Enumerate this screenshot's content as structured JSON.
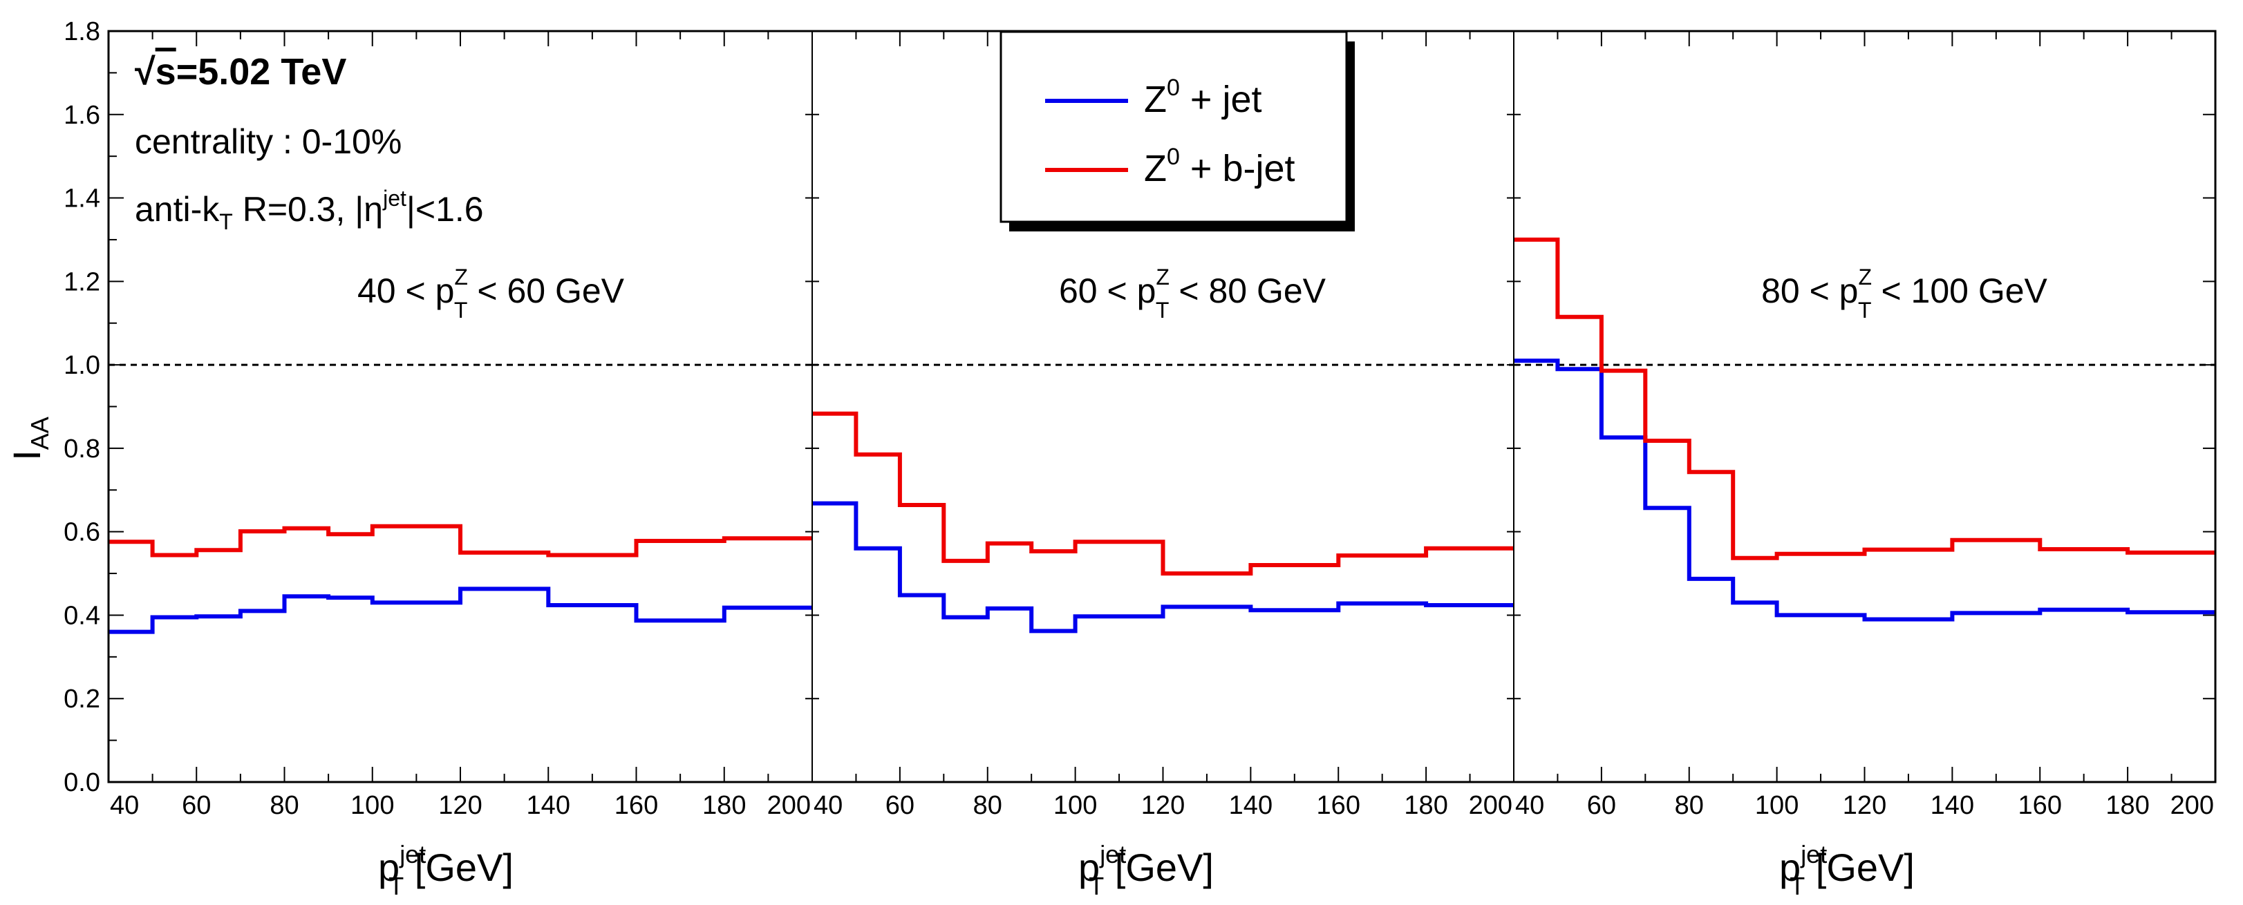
{
  "chart_data": {
    "type": "line",
    "style": "step",
    "ylabel": "I",
    "ylabel_sub": "AA",
    "ylim": [
      0,
      1.8
    ],
    "yticks": [
      "0.0",
      "0.2",
      "0.4",
      "0.6",
      "0.8",
      "1.0",
      "1.2",
      "1.4",
      "1.6",
      "1.8"
    ],
    "reference_line": 1.0,
    "annotations": {
      "energy_sqrt": "√",
      "energy_s": "s",
      "energy_value": "=5.02 TeV",
      "centrality": "centrality : 0-10%",
      "algo_a": "anti-k",
      "algo_sub": "T",
      "algo_b": " R=0.3, |η",
      "algo_sup": "jet",
      "algo_c": "|<1.6"
    },
    "legend": [
      {
        "name": "Z",
        "sup": "0",
        "rest": " + jet",
        "color": "#0000ee"
      },
      {
        "name": "Z",
        "sup": "0",
        "rest": " + b-jet",
        "color": "#ee0000"
      }
    ],
    "panels": [
      {
        "range_left": "40 < p",
        "range_sup": "Z",
        "range_sub": "T",
        "range_right": " < 60 GeV",
        "xlabel": "p",
        "xlabel_sup": "jet",
        "xlabel_sub": "T",
        "xlabel_unit": " [GeV]",
        "xlim": [
          40,
          200
        ],
        "xticks": [
          "40",
          "60",
          "80",
          "100",
          "120",
          "140",
          "160",
          "180",
          "200"
        ],
        "bin_edges": [
          40,
          50,
          60,
          70,
          80,
          90,
          100,
          120,
          140,
          160,
          180,
          200
        ],
        "series": [
          {
            "name": "Z0 + jet",
            "color": "#0000ee",
            "values": [
              0.36,
              0.395,
              0.397,
              0.41,
              0.445,
              0.442,
              0.43,
              0.463,
              0.424,
              0.387,
              0.418
            ]
          },
          {
            "name": "Z0 + b-jet",
            "color": "#ee0000",
            "values": [
              0.576,
              0.544,
              0.556,
              0.601,
              0.608,
              0.594,
              0.613,
              0.55,
              0.544,
              0.578,
              0.584
            ]
          }
        ]
      },
      {
        "range_left": "60 < p",
        "range_sup": "Z",
        "range_sub": "T",
        "range_right": " < 80 GeV",
        "xlabel": "p",
        "xlabel_sup": "jet",
        "xlabel_sub": "T",
        "xlabel_unit": " [GeV]",
        "xlim": [
          40,
          200
        ],
        "xticks": [
          "40",
          "60",
          "80",
          "100",
          "120",
          "140",
          "160",
          "180",
          "200"
        ],
        "bin_edges": [
          40,
          50,
          60,
          70,
          80,
          90,
          100,
          120,
          140,
          160,
          180,
          200
        ],
        "series": [
          {
            "name": "Z0 + jet",
            "color": "#0000ee",
            "values": [
              0.668,
              0.56,
              0.448,
              0.395,
              0.416,
              0.362,
              0.397,
              0.42,
              0.412,
              0.428,
              0.424
            ]
          },
          {
            "name": "Z0 + b-jet",
            "color": "#ee0000",
            "values": [
              0.883,
              0.785,
              0.664,
              0.53,
              0.572,
              0.553,
              0.576,
              0.5,
              0.52,
              0.543,
              0.56
            ]
          }
        ]
      },
      {
        "range_left": "80 < p",
        "range_sup": "Z",
        "range_sub": "T",
        "range_right": " < 100 GeV",
        "xlabel": "p",
        "xlabel_sup": "jet",
        "xlabel_sub": "T",
        "xlabel_unit": " [GeV]",
        "xlim": [
          40,
          200
        ],
        "xticks": [
          "40",
          "60",
          "80",
          "100",
          "120",
          "140",
          "160",
          "180",
          "200"
        ],
        "bin_edges": [
          40,
          50,
          60,
          70,
          80,
          90,
          100,
          120,
          140,
          160,
          180,
          200
        ],
        "series": [
          {
            "name": "Z0 + jet",
            "color": "#0000ee",
            "values": [
              1.01,
              0.99,
              0.826,
              0.657,
              0.487,
              0.43,
              0.4,
              0.39,
              0.405,
              0.413,
              0.407
            ]
          },
          {
            "name": "Z0 + b-jet",
            "color": "#ee0000",
            "values": [
              1.3,
              1.115,
              0.986,
              0.818,
              0.743,
              0.537,
              0.547,
              0.557,
              0.58,
              0.558,
              0.55
            ]
          }
        ]
      }
    ]
  }
}
